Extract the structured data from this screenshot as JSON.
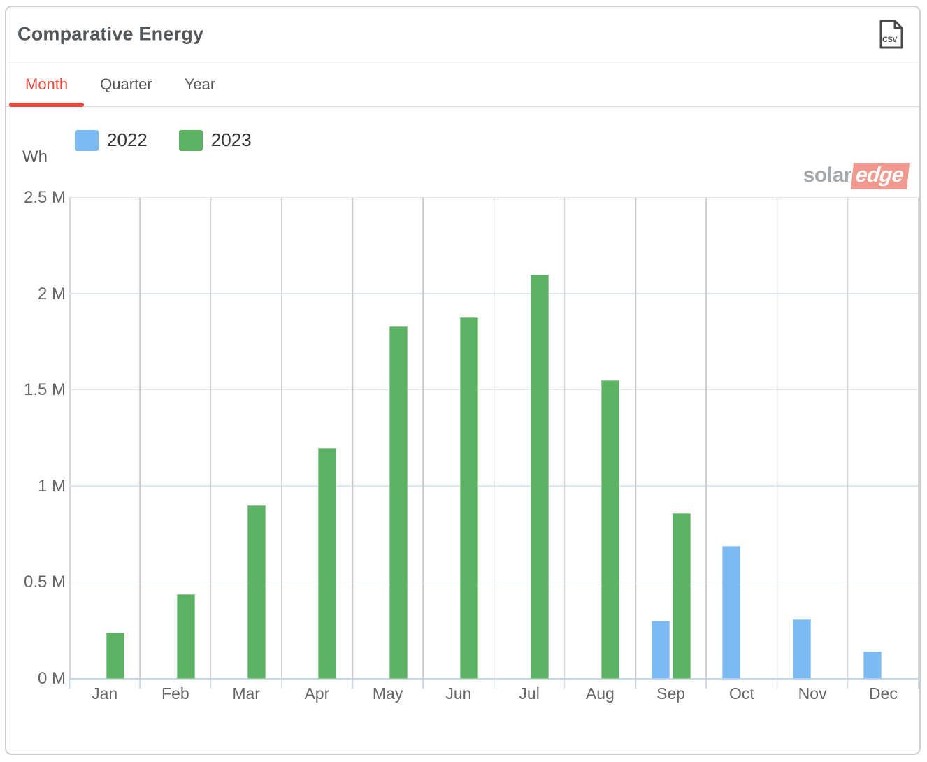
{
  "header": {
    "title": "Comparative Energy"
  },
  "tabs": [
    {
      "label": "Month",
      "active": true
    },
    {
      "label": "Quarter",
      "active": false
    },
    {
      "label": "Year",
      "active": false
    }
  ],
  "watermark": {
    "part1": "solar",
    "part2": "edge"
  },
  "csv_icon_text": "CSV",
  "colors": {
    "accent_red": "#e8483b",
    "series_2022_blue": "#7db9f2",
    "series_2023_green": "#5bb263",
    "hgrid": "#dce8f4",
    "vgrid": "#c9c9c9"
  },
  "chart_data": {
    "type": "bar",
    "title": "Comparative Energy",
    "ylabel": "Wh",
    "xlabel": "",
    "categories": [
      "Jan",
      "Feb",
      "Mar",
      "Apr",
      "May",
      "Jun",
      "Jul",
      "Aug",
      "Sep",
      "Oct",
      "Nov",
      "Dec"
    ],
    "series": [
      {
        "name": "2022",
        "color": "#7db9f2",
        "values": [
          null,
          null,
          null,
          null,
          null,
          null,
          null,
          null,
          0.3,
          0.69,
          0.31,
          0.14
        ]
      },
      {
        "name": "2023",
        "color": "#5bb263",
        "values": [
          0.24,
          0.44,
          0.9,
          1.2,
          1.83,
          1.88,
          2.1,
          1.55,
          0.86,
          null,
          null,
          null
        ]
      }
    ],
    "values_unit": "M (millions of Wh)",
    "ylim": [
      0,
      2.5
    ],
    "ytick_step": 0.5,
    "ytick_labels": [
      "0 M",
      "0.5 M",
      "1 M",
      "1.5 M",
      "2 M",
      "2.5 M"
    ],
    "grid": true,
    "legend_position": "top-left"
  }
}
